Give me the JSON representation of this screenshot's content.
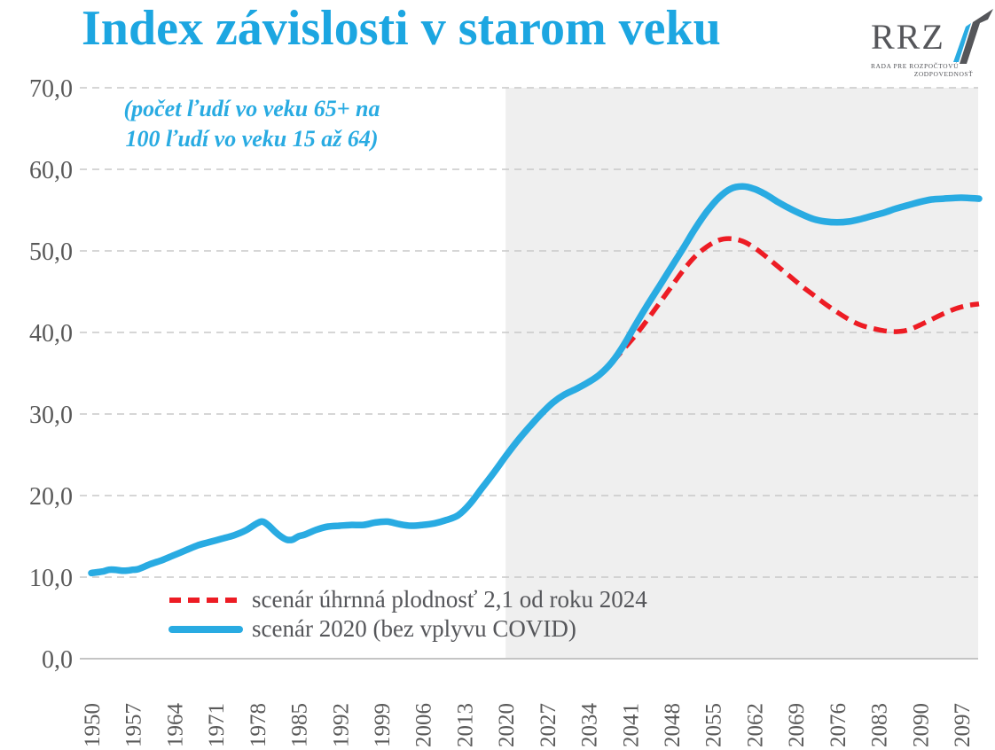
{
  "title": "Index závislosti v starom veku",
  "subtitle": {
    "line1": "(počet ľudí vo veku 65+ na",
    "line2": "100 ľudí vo veku 15 až 64)"
  },
  "logo": {
    "acronym": "RRZ",
    "name_line1": "RADA PRE ROZPOČTOVÚ",
    "name_line2": "ZODPOVEDNOSŤ"
  },
  "colors": {
    "accent_blue": "#29ABE2",
    "title_blue": "#1CA6E1",
    "series_red": "#ED1C24",
    "axis_text": "#595959",
    "gridline": "#c9c9c9",
    "projection_shading": "#efefef",
    "logo_gray": "#55565A"
  },
  "chart_data": {
    "type": "line",
    "title": "Index závislosti v starom veku",
    "subtitle": "(počet ľudí vo veku 65+ na 100 ľudí vo veku 15 až 64)",
    "xlabel": "",
    "ylabel": "",
    "xlim": [
      1948,
      2100
    ],
    "ylim": [
      0,
      70
    ],
    "grid": "horizontal-dashed",
    "legend_position": "inside-bottom-left",
    "projection_region_start": 2020,
    "x_ticks": [
      "1950",
      "1957",
      "1964",
      "1971",
      "1978",
      "1985",
      "1992",
      "1999",
      "2006",
      "2013",
      "2020",
      "2027",
      "2034",
      "2041",
      "2048",
      "2055",
      "2062",
      "2069",
      "2076",
      "2083",
      "2090",
      "2097"
    ],
    "y_ticks": [
      {
        "value": 0,
        "label": "0,0"
      },
      {
        "value": 10,
        "label": "10,0"
      },
      {
        "value": 20,
        "label": "20,0"
      },
      {
        "value": 30,
        "label": "30,0"
      },
      {
        "value": 40,
        "label": "40,0"
      },
      {
        "value": 50,
        "label": "50,0"
      },
      {
        "value": 60,
        "label": "60,0"
      },
      {
        "value": 70,
        "label": "70,0"
      }
    ],
    "series": [
      {
        "name": "scenár úhrnná plodnosť 2,1 od roku 2024",
        "style": "dashed",
        "color": "#ED1C24",
        "points": [
          [
            2038,
            36.3
          ],
          [
            2040,
            38.0
          ],
          [
            2042,
            39.7
          ],
          [
            2044,
            41.6
          ],
          [
            2046,
            43.6
          ],
          [
            2048,
            45.6
          ],
          [
            2050,
            47.6
          ],
          [
            2052,
            49.3
          ],
          [
            2054,
            50.5
          ],
          [
            2056,
            51.3
          ],
          [
            2058,
            51.5
          ],
          [
            2060,
            51.2
          ],
          [
            2062,
            50.4
          ],
          [
            2064,
            49.3
          ],
          [
            2066,
            48.1
          ],
          [
            2068,
            46.9
          ],
          [
            2070,
            45.7
          ],
          [
            2072,
            44.6
          ],
          [
            2074,
            43.5
          ],
          [
            2076,
            42.5
          ],
          [
            2078,
            41.6
          ],
          [
            2080,
            40.9
          ],
          [
            2082,
            40.5
          ],
          [
            2084,
            40.2
          ],
          [
            2086,
            40.1
          ],
          [
            2088,
            40.3
          ],
          [
            2090,
            40.9
          ],
          [
            2092,
            41.6
          ],
          [
            2094,
            42.3
          ],
          [
            2096,
            42.9
          ],
          [
            2098,
            43.3
          ],
          [
            2100,
            43.5
          ]
        ]
      },
      {
        "name": "scenár 2020 (bez vplyvu COVID)",
        "style": "solid",
        "color": "#29ABE2",
        "points": [
          [
            1950,
            10.5
          ],
          [
            1951,
            10.6
          ],
          [
            1952,
            10.7
          ],
          [
            1953,
            10.9
          ],
          [
            1954,
            10.9
          ],
          [
            1955,
            10.8
          ],
          [
            1956,
            10.8
          ],
          [
            1957,
            10.9
          ],
          [
            1958,
            11.0
          ],
          [
            1960,
            11.6
          ],
          [
            1962,
            12.1
          ],
          [
            1964,
            12.7
          ],
          [
            1966,
            13.3
          ],
          [
            1968,
            13.9
          ],
          [
            1970,
            14.3
          ],
          [
            1972,
            14.7
          ],
          [
            1974,
            15.1
          ],
          [
            1976,
            15.7
          ],
          [
            1978,
            16.6
          ],
          [
            1979,
            16.8
          ],
          [
            1980,
            16.3
          ],
          [
            1981,
            15.6
          ],
          [
            1982,
            15.0
          ],
          [
            1983,
            14.6
          ],
          [
            1984,
            14.6
          ],
          [
            1985,
            15.0
          ],
          [
            1986,
            15.2
          ],
          [
            1988,
            15.8
          ],
          [
            1990,
            16.2
          ],
          [
            1992,
            16.3
          ],
          [
            1994,
            16.4
          ],
          [
            1996,
            16.4
          ],
          [
            1998,
            16.7
          ],
          [
            2000,
            16.8
          ],
          [
            2002,
            16.5
          ],
          [
            2004,
            16.3
          ],
          [
            2006,
            16.4
          ],
          [
            2008,
            16.6
          ],
          [
            2010,
            17.0
          ],
          [
            2012,
            17.6
          ],
          [
            2014,
            19.0
          ],
          [
            2016,
            20.9
          ],
          [
            2018,
            22.8
          ],
          [
            2020,
            24.8
          ],
          [
            2022,
            26.7
          ],
          [
            2024,
            28.4
          ],
          [
            2026,
            30.0
          ],
          [
            2028,
            31.4
          ],
          [
            2030,
            32.4
          ],
          [
            2032,
            33.1
          ],
          [
            2034,
            33.9
          ],
          [
            2036,
            34.9
          ],
          [
            2038,
            36.4
          ],
          [
            2040,
            38.5
          ],
          [
            2042,
            41.0
          ],
          [
            2044,
            43.4
          ],
          [
            2046,
            45.7
          ],
          [
            2048,
            48.0
          ],
          [
            2050,
            50.3
          ],
          [
            2052,
            52.7
          ],
          [
            2054,
            54.8
          ],
          [
            2056,
            56.5
          ],
          [
            2058,
            57.6
          ],
          [
            2060,
            57.9
          ],
          [
            2062,
            57.6
          ],
          [
            2064,
            56.9
          ],
          [
            2066,
            56.0
          ],
          [
            2068,
            55.2
          ],
          [
            2070,
            54.5
          ],
          [
            2072,
            53.9
          ],
          [
            2074,
            53.6
          ],
          [
            2076,
            53.5
          ],
          [
            2078,
            53.6
          ],
          [
            2080,
            53.9
          ],
          [
            2082,
            54.3
          ],
          [
            2084,
            54.7
          ],
          [
            2086,
            55.2
          ],
          [
            2088,
            55.6
          ],
          [
            2090,
            56.0
          ],
          [
            2092,
            56.3
          ],
          [
            2094,
            56.4
          ],
          [
            2096,
            56.5
          ],
          [
            2098,
            56.5
          ],
          [
            2100,
            56.4
          ]
        ]
      }
    ]
  }
}
